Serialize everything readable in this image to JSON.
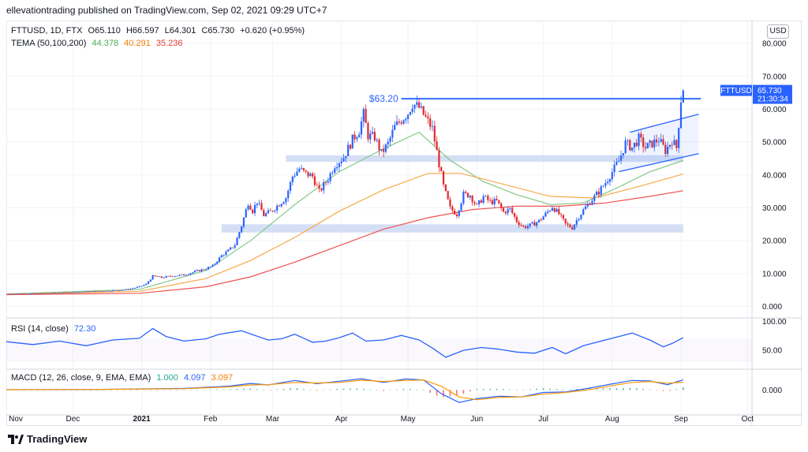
{
  "publisher_line": "ellevationtrading published on TradingView.com, Sep 02, 2021 09:29 UTC+7",
  "currency_button": "USD",
  "logo_text": "TradingView",
  "legend": {
    "symbol": "FTTUSD, 1D, FTX",
    "o": "O65.110",
    "h": "H66.597",
    "l": "L64.301",
    "c": "C65.730",
    "chg": "+0.620 (+0.95%)",
    "tema_label": "TEMA (50,100,200)",
    "tema1": "44.378",
    "tema2": "40.291",
    "tema3": "35.236",
    "rsi_label": "RSI (14, close)",
    "rsi_value": "72.30",
    "macd_label": "MACD (12, 26, close, 9, EMA, EMA)",
    "macd1": "1.000",
    "macd2": "4.097",
    "macd3": "3.097"
  },
  "price_tag": {
    "symbol": "FTTUSD",
    "price": "65.730",
    "countdown": "21:30:34"
  },
  "annotation": "$63.20",
  "colors": {
    "up": "#2962ff",
    "down": "#e0292e",
    "tema1": "#81c784",
    "tema2": "#f7a94a",
    "tema3": "#ef5350",
    "rsi": "#2962ff",
    "macd": "#2962ff",
    "signal": "#ff9800",
    "zone": "#c6d4f2",
    "trendline": "#2962ff"
  },
  "chart_data": [
    {
      "type": "candlestick",
      "title": "FTTUSD, 1D, FTX",
      "x_tick_labels": [
        "Nov",
        "Dec",
        "2021",
        "Feb",
        "Mar",
        "Apr",
        "May",
        "Jun",
        "Jul",
        "Aug",
        "Sep",
        "Oct"
      ],
      "y_tick_labels": [
        "80.000",
        "70.000",
        "60.000",
        "50.000",
        "40.000",
        "30.000",
        "20.000",
        "10.000",
        "0.000"
      ],
      "ylim": [
        -3,
        87
      ],
      "price_series_close": [
        [
          0,
          3.8
        ],
        [
          10,
          3.9
        ],
        [
          20,
          4.0
        ],
        [
          30,
          4.3
        ],
        [
          40,
          4.6
        ],
        [
          50,
          4.9
        ],
        [
          55,
          5.2
        ],
        [
          60,
          6.0
        ],
        [
          63,
          6.8
        ],
        [
          66,
          9.2
        ],
        [
          70,
          8.8
        ],
        [
          75,
          9.3
        ],
        [
          80,
          9.6
        ],
        [
          85,
          10.6
        ],
        [
          90,
          11.5
        ],
        [
          93,
          12.3
        ],
        [
          97,
          15.5
        ],
        [
          100,
          16.9
        ],
        [
          103,
          18.8
        ],
        [
          106,
          24.6
        ],
        [
          109,
          31.6
        ],
        [
          111,
          29.1
        ],
        [
          113,
          32.0
        ],
        [
          116,
          27.8
        ],
        [
          119,
          28.8
        ],
        [
          122,
          30.6
        ],
        [
          126,
          33.1
        ],
        [
          129,
          39.6
        ],
        [
          132,
          41.9
        ],
        [
          135,
          40.4
        ],
        [
          138,
          39.6
        ],
        [
          141,
          34.9
        ],
        [
          145,
          38.9
        ],
        [
          148,
          43.1
        ],
        [
          152,
          45.4
        ],
        [
          156,
          50.8
        ],
        [
          159,
          53.6
        ],
        [
          161,
          58.5
        ],
        [
          163,
          52.0
        ],
        [
          166,
          51.5
        ],
        [
          169,
          46.6
        ],
        [
          172,
          49.5
        ],
        [
          175,
          54.6
        ],
        [
          178,
          56.8
        ],
        [
          181,
          58.9
        ],
        [
          183,
          61.7
        ],
        [
          186,
          60.5
        ],
        [
          189,
          57.3
        ],
        [
          192,
          54.1
        ],
        [
          195,
          43.4
        ],
        [
          197,
          36.5
        ],
        [
          200,
          29.8
        ],
        [
          203,
          28.1
        ],
        [
          206,
          34.1
        ],
        [
          209,
          33.9
        ],
        [
          212,
          30.4
        ],
        [
          215,
          33.4
        ],
        [
          218,
          31.8
        ],
        [
          221,
          32.0
        ],
        [
          224,
          28.7
        ],
        [
          227,
          29.6
        ],
        [
          230,
          26.0
        ],
        [
          233,
          24.2
        ],
        [
          236,
          24.6
        ],
        [
          240,
          26.0
        ],
        [
          243,
          28.1
        ],
        [
          246,
          30.4
        ],
        [
          249,
          28.1
        ],
        [
          252,
          25.0
        ],
        [
          255,
          24.0
        ],
        [
          258,
          27.4
        ],
        [
          261,
          30.2
        ],
        [
          264,
          32.6
        ],
        [
          267,
          34.9
        ],
        [
          270,
          37.7
        ],
        [
          273,
          40.9
        ],
        [
          276,
          44.3
        ],
        [
          279,
          49.7
        ],
        [
          282,
          48.3
        ],
        [
          285,
          51.1
        ],
        [
          288,
          48.3
        ],
        [
          291,
          49.6
        ],
        [
          294,
          50.8
        ],
        [
          297,
          47.4
        ],
        [
          300,
          50.6
        ],
        [
          302,
          48.3
        ],
        [
          304,
          63.0
        ],
        [
          305,
          65.7
        ]
      ],
      "indicators": [
        {
          "name": "TEMA 50",
          "values": [
            [
              0,
              3.8
            ],
            [
              60,
              5.2
            ],
            [
              90,
              11.0
            ],
            [
              110,
              20.0
            ],
            [
              130,
              31.0
            ],
            [
              150,
              41.0
            ],
            [
              170,
              48.0
            ],
            [
              186,
              53.0
            ],
            [
              200,
              44.5
            ],
            [
              215,
              38.0
            ],
            [
              230,
              34.0
            ],
            [
              245,
              31.0
            ],
            [
              260,
              31.5
            ],
            [
              275,
              36.0
            ],
            [
              290,
              41.0
            ],
            [
              305,
              44.4
            ]
          ]
        },
        {
          "name": "TEMA 100",
          "values": [
            [
              0,
              3.7
            ],
            [
              60,
              4.6
            ],
            [
              90,
              8.5
            ],
            [
              110,
              14.0
            ],
            [
              130,
              21.0
            ],
            [
              150,
              29.0
            ],
            [
              170,
              35.5
            ],
            [
              190,
              40.5
            ],
            [
              205,
              40.5
            ],
            [
              225,
              37.0
            ],
            [
              245,
              33.5
            ],
            [
              265,
              33.0
            ],
            [
              285,
              36.5
            ],
            [
              305,
              40.3
            ]
          ]
        },
        {
          "name": "TEMA 200",
          "values": [
            [
              0,
              3.6
            ],
            [
              60,
              4.0
            ],
            [
              90,
              6.0
            ],
            [
              110,
              9.0
            ],
            [
              130,
              13.5
            ],
            [
              150,
              18.5
            ],
            [
              170,
              23.5
            ],
            [
              190,
              27.0
            ],
            [
              210,
              29.5
            ],
            [
              230,
              30.5
            ],
            [
              250,
              30.5
            ],
            [
              270,
              31.5
            ],
            [
              290,
              33.5
            ],
            [
              305,
              35.2
            ]
          ]
        }
      ],
      "annotations": {
        "resistance_level": 63.2
      }
    },
    {
      "type": "line",
      "title": "RSI (14, close)",
      "y_tick_labels": [
        "100.00",
        "50.00"
      ],
      "ylim": [
        20,
        105
      ],
      "values": [
        [
          0,
          65
        ],
        [
          12,
          60
        ],
        [
          24,
          66
        ],
        [
          36,
          58
        ],
        [
          48,
          68
        ],
        [
          60,
          71
        ],
        [
          66,
          88
        ],
        [
          72,
          74
        ],
        [
          80,
          66
        ],
        [
          90,
          70
        ],
        [
          96,
          78
        ],
        [
          106,
          84
        ],
        [
          112,
          76
        ],
        [
          118,
          68
        ],
        [
          124,
          70
        ],
        [
          130,
          78
        ],
        [
          138,
          64
        ],
        [
          144,
          66
        ],
        [
          150,
          72
        ],
        [
          156,
          80
        ],
        [
          162,
          66
        ],
        [
          170,
          68
        ],
        [
          178,
          76
        ],
        [
          186,
          68
        ],
        [
          192,
          54
        ],
        [
          198,
          38
        ],
        [
          206,
          50
        ],
        [
          214,
          55
        ],
        [
          222,
          52
        ],
        [
          230,
          47
        ],
        [
          238,
          45
        ],
        [
          246,
          55
        ],
        [
          252,
          44
        ],
        [
          260,
          58
        ],
        [
          268,
          66
        ],
        [
          276,
          74
        ],
        [
          282,
          80
        ],
        [
          290,
          68
        ],
        [
          296,
          56
        ],
        [
          300,
          62
        ],
        [
          305,
          72
        ]
      ]
    },
    {
      "type": "line",
      "title": "MACD (12, 26, close, 9, EMA, EMA)",
      "y_tick_labels": [
        "0.000"
      ],
      "ylim": [
        -10,
        8
      ],
      "series": [
        {
          "values": [
            [
              0,
              0.1
            ],
            [
              40,
              0.2
            ],
            [
              80,
              0.6
            ],
            [
              100,
              1.5
            ],
            [
              110,
              2.6
            ],
            [
              118,
              2.0
            ],
            [
              130,
              3.8
            ],
            [
              140,
              2.5
            ],
            [
              150,
              3.5
            ],
            [
              160,
              4.5
            ],
            [
              170,
              3.0
            ],
            [
              180,
              4.4
            ],
            [
              188,
              4.0
            ],
            [
              196,
              -1.5
            ],
            [
              204,
              -5.0
            ],
            [
              212,
              -3.5
            ],
            [
              222,
              -2.5
            ],
            [
              232,
              -2.8
            ],
            [
              242,
              -1.0
            ],
            [
              252,
              -0.8
            ],
            [
              262,
              0.6
            ],
            [
              272,
              2.3
            ],
            [
              282,
              3.8
            ],
            [
              290,
              3.6
            ],
            [
              298,
              2.1
            ],
            [
              305,
              4.1
            ]
          ]
        },
        {
          "values": [
            [
              0,
              0.1
            ],
            [
              40,
              0.2
            ],
            [
              80,
              0.5
            ],
            [
              100,
              1.2
            ],
            [
              110,
              2.0
            ],
            [
              118,
              2.1
            ],
            [
              130,
              3.0
            ],
            [
              140,
              2.8
            ],
            [
              150,
              3.0
            ],
            [
              160,
              3.9
            ],
            [
              170,
              3.4
            ],
            [
              180,
              3.8
            ],
            [
              188,
              4.0
            ],
            [
              196,
              1.5
            ],
            [
              204,
              -2.8
            ],
            [
              212,
              -3.9
            ],
            [
              222,
              -3.0
            ],
            [
              232,
              -2.8
            ],
            [
              242,
              -1.7
            ],
            [
              252,
              -1.0
            ],
            [
              262,
              0.0
            ],
            [
              272,
              1.6
            ],
            [
              282,
              3.0
            ],
            [
              290,
              3.4
            ],
            [
              298,
              2.7
            ],
            [
              305,
              3.1
            ]
          ]
        }
      ]
    }
  ]
}
